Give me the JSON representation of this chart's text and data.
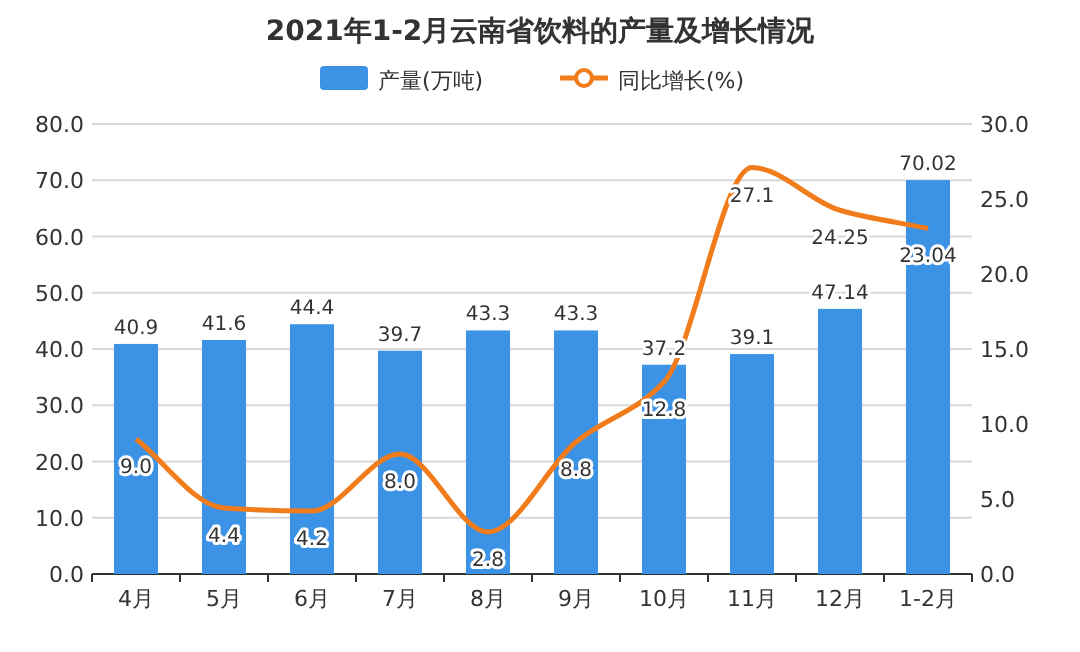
{
  "chart_data": {
    "type": "bar",
    "title": "2021年1-2月云南省饮料的产量及增长情况",
    "categories": [
      "4月",
      "5月",
      "6月",
      "7月",
      "8月",
      "9月",
      "10月",
      "11月",
      "12月",
      "1-2月"
    ],
    "series": [
      {
        "name": "产量(万吨)",
        "color": "#3c93e6",
        "values": [
          40.9,
          41.6,
          44.4,
          39.7,
          43.3,
          43.3,
          37.2,
          39.1,
          47.14,
          70.02
        ],
        "value_labels": [
          "40.9",
          "41.6",
          "44.4",
          "39.7",
          "43.3",
          "43.3",
          "37.2",
          "39.1",
          "47.14",
          "70.02"
        ]
      },
      {
        "name": "同比增长(%)",
        "type": "line",
        "axis": "y2",
        "color": "#f07c1c",
        "values": [
          9.0,
          4.4,
          4.2,
          8.0,
          2.8,
          8.8,
          12.8,
          27.1,
          24.25,
          23.04
        ],
        "value_labels": [
          "9.0",
          "4.4",
          "4.2",
          "8.0",
          "2.8",
          "8.8",
          "12.8",
          "27.1",
          "24.25",
          "23.04"
        ]
      }
    ],
    "ylim": [
      0,
      80
    ],
    "yticks": [
      {
        "value": 0,
        "label": "0.0"
      },
      {
        "value": 10,
        "label": "10.0"
      },
      {
        "value": 20,
        "label": "20.0"
      },
      {
        "value": 30,
        "label": "30.0"
      },
      {
        "value": 40,
        "label": "40.0"
      },
      {
        "value": 50,
        "label": "50.0"
      },
      {
        "value": 60,
        "label": "60.0"
      },
      {
        "value": 70,
        "label": "70.0"
      },
      {
        "value": 80,
        "label": "80.0"
      }
    ],
    "y2lim": [
      0,
      30
    ],
    "y2ticks": [
      {
        "value": 0,
        "label": "0.0"
      },
      {
        "value": 5,
        "label": "5.0"
      },
      {
        "value": 10,
        "label": "10.0"
      },
      {
        "value": 15,
        "label": "15.0"
      },
      {
        "value": 20,
        "label": "20.0"
      },
      {
        "value": 25,
        "label": "25.0"
      },
      {
        "value": 30,
        "label": "30.0"
      }
    ],
    "grid": "y",
    "legend": "top",
    "marker": "none",
    "line_style": "solid"
  }
}
